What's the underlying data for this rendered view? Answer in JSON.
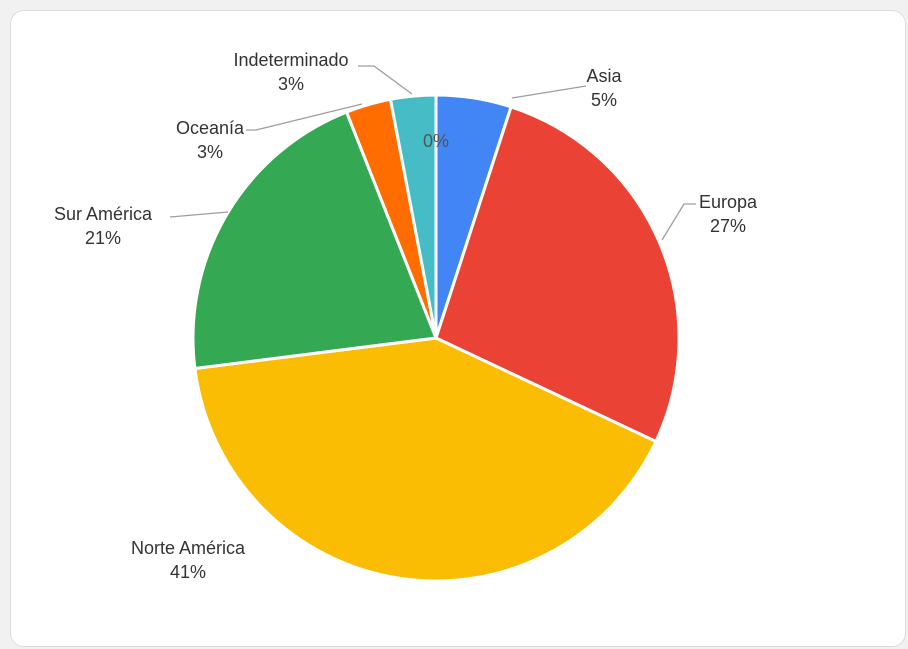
{
  "chart_data": {
    "type": "pie",
    "title": "",
    "slices": [
      {
        "name": "Asia",
        "label": "5%",
        "value": 5,
        "color": "#4285F4"
      },
      {
        "name": "Europa",
        "label": "27%",
        "value": 27,
        "color": "#EA4335"
      },
      {
        "name": "Norte América",
        "label": "41%",
        "value": 41,
        "color": "#FBBC04"
      },
      {
        "name": "Sur América",
        "label": "21%",
        "value": 21,
        "color": "#34A853"
      },
      {
        "name": "Oceanía",
        "label": "3%",
        "value": 3,
        "color": "#FF6D01"
      },
      {
        "name": "Indeterminado",
        "label": "3%",
        "value": 3,
        "color": "#46BDC6"
      }
    ],
    "center_label": "0%",
    "legend": "none"
  }
}
